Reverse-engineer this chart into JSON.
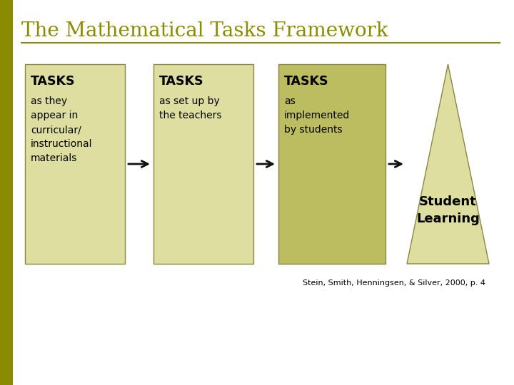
{
  "title": "The Mathematical Tasks Framework",
  "title_color": "#8B8B00",
  "background_color": "#FFFFFF",
  "box1_color": "#DDDEA0",
  "box2_color": "#DDDEA0",
  "box3_color": "#BCBC60",
  "triangle_color": "#DDDEA0",
  "box1_label": "TASKS",
  "box1_text": "as they\nappear in\ncurricular/\ninstructional\nmaterials",
  "box2_label": "TASKS",
  "box2_text": "as set up by\nthe teachers",
  "box3_label": "TASKS",
  "box3_text": "as\nimplemented\nby students",
  "triangle_text": "Student\nLearning",
  "citation": "Stein, Smith, Henningsen, & Silver, 2000, p. 4",
  "line_color": "#8B8B00",
  "left_stripe_color": "#8B8B00",
  "edge_color": "#888844",
  "arrow_color": "#111111"
}
